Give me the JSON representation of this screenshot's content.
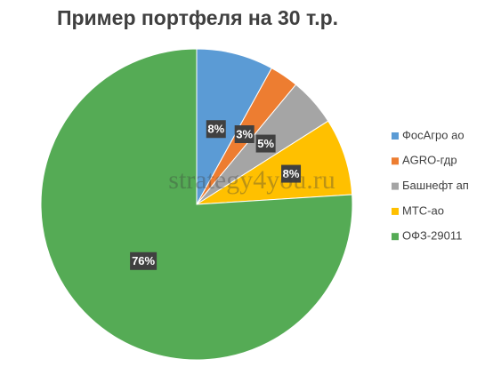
{
  "chart_data": {
    "type": "pie",
    "title": "Пример портфеля на 30 т.р.",
    "watermark": "strategy4you.ru",
    "categories": [
      "ФосАгро ао",
      "AGRO-гдр",
      "Башнефт ап",
      "МТС-ао",
      "ОФЗ-29011"
    ],
    "values": [
      8,
      3,
      5,
      8,
      76
    ],
    "value_labels": [
      "8%",
      "3%",
      "5%",
      "8%",
      "76%"
    ],
    "colors": [
      "#5b9bd5",
      "#ed7d31",
      "#a5a5a5",
      "#ffc000",
      "#55ab55"
    ],
    "legend": "right"
  }
}
